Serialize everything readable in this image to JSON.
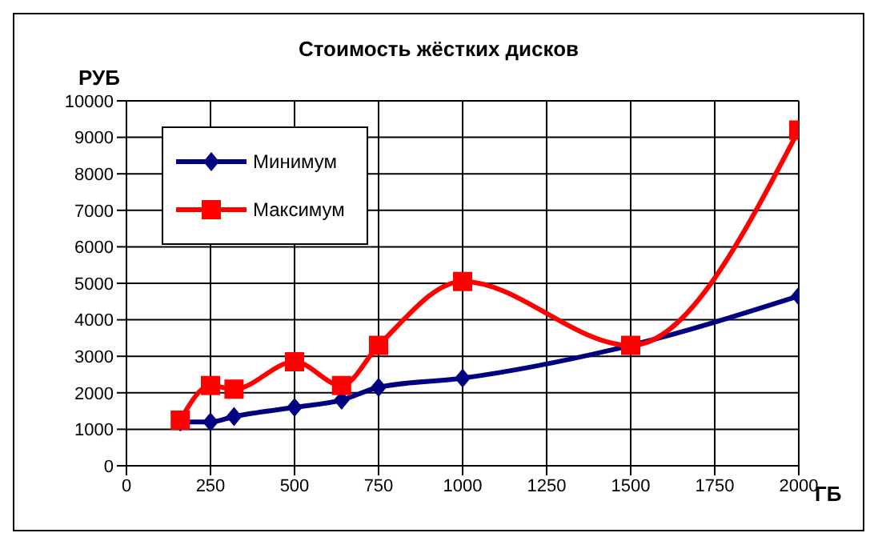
{
  "chart_data": {
    "type": "line",
    "title": "Стоимость жёстких дисков",
    "xlabel": "ГБ",
    "ylabel": "РУБ",
    "x": [
      160,
      250,
      320,
      500,
      640,
      750,
      1000,
      1500,
      2000
    ],
    "series": [
      {
        "name": "Минимум",
        "color": "#000080",
        "marker": "diamond",
        "values": [
          1200,
          1200,
          1350,
          1600,
          1800,
          2150,
          2400,
          3300,
          4650
        ]
      },
      {
        "name": "Максимум",
        "color": "#ff0000",
        "marker": "square",
        "values": [
          1250,
          2200,
          2100,
          2850,
          2200,
          3300,
          5050,
          3300,
          9200
        ]
      }
    ],
    "xlim": [
      0,
      2000
    ],
    "xticks": [
      0,
      250,
      500,
      750,
      1000,
      1250,
      1500,
      1750,
      2000
    ],
    "ylim": [
      0,
      10000
    ],
    "yticks": [
      0,
      1000,
      2000,
      3000,
      4000,
      5000,
      6000,
      7000,
      8000,
      9000,
      10000
    ],
    "grid": true,
    "legend": "top left",
    "line_style": "solid"
  }
}
